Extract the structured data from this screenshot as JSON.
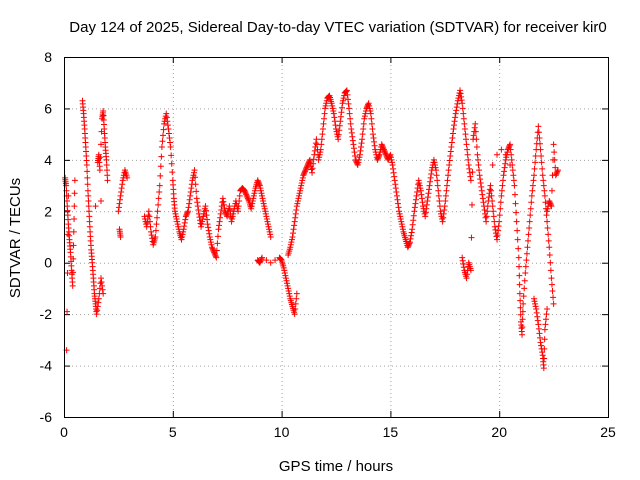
{
  "chart_data": {
    "type": "scatter",
    "title": "Day 124 of 2025, Sidereal Day-to-day VTEC variation (SDTVAR) for receiver kir0",
    "xlabel": "GPS time / hours",
    "ylabel": "SDTVAR / TECUs",
    "xlim": [
      0,
      25
    ],
    "ylim": [
      -6,
      8
    ],
    "xticks": [
      0,
      5,
      10,
      15,
      20,
      25
    ],
    "yticks": [
      -6,
      -4,
      -2,
      0,
      2,
      4,
      6,
      8
    ],
    "grid": true,
    "marker": "+",
    "color": "#ff0000",
    "series": [
      {
        "name": "SDTVAR",
        "points": [
          [
            0.05,
            3.3
          ],
          [
            0.1,
            3.0
          ],
          [
            0.15,
            2.2
          ],
          [
            0.2,
            1.5
          ],
          [
            0.25,
            0.9
          ],
          [
            0.3,
            0.4
          ],
          [
            0.35,
            -0.3
          ],
          [
            0.4,
            -0.9
          ],
          [
            0.45,
            1.2
          ],
          [
            0.5,
            3.2
          ],
          [
            0.12,
            -3.4
          ],
          [
            0.2,
            2.6
          ],
          [
            0.85,
            6.3
          ],
          [
            0.9,
            5.8
          ],
          [
            0.95,
            5.2
          ],
          [
            1.0,
            4.5
          ],
          [
            1.05,
            3.8
          ],
          [
            1.1,
            2.8
          ],
          [
            1.15,
            2.0
          ],
          [
            1.2,
            1.2
          ],
          [
            1.25,
            0.5
          ],
          [
            1.3,
            0.0
          ],
          [
            1.35,
            -0.6
          ],
          [
            1.4,
            -1.2
          ],
          [
            1.45,
            -1.6
          ],
          [
            1.5,
            -2.0
          ],
          [
            1.6,
            -1.4
          ],
          [
            1.7,
            -0.6
          ],
          [
            1.8,
            -1.2
          ],
          [
            1.55,
            3.9
          ],
          [
            1.6,
            4.2
          ],
          [
            1.65,
            3.6
          ],
          [
            1.75,
            5.6
          ],
          [
            1.8,
            5.9
          ],
          [
            1.85,
            5.2
          ],
          [
            1.9,
            4.5
          ],
          [
            1.95,
            4.0
          ],
          [
            2.0,
            3.2
          ],
          [
            1.7,
            2.4
          ],
          [
            1.45,
            2.2
          ],
          [
            2.5,
            2.0
          ],
          [
            2.6,
            2.6
          ],
          [
            2.7,
            3.2
          ],
          [
            2.8,
            3.6
          ],
          [
            2.9,
            3.3
          ],
          [
            2.55,
            1.3
          ],
          [
            2.6,
            1.0
          ],
          [
            3.7,
            1.8
          ],
          [
            3.8,
            1.4
          ],
          [
            3.9,
            2.0
          ],
          [
            4.0,
            1.2
          ],
          [
            4.1,
            0.7
          ],
          [
            4.2,
            1.0
          ],
          [
            4.3,
            2.0
          ],
          [
            4.4,
            3.0
          ],
          [
            4.5,
            4.5
          ],
          [
            4.6,
            5.4
          ],
          [
            4.7,
            5.8
          ],
          [
            4.8,
            5.2
          ],
          [
            4.9,
            4.5
          ],
          [
            5.0,
            3.2
          ],
          [
            5.05,
            2.5
          ],
          [
            5.1,
            2.0
          ],
          [
            5.2,
            1.6
          ],
          [
            5.3,
            1.2
          ],
          [
            5.4,
            0.9
          ],
          [
            5.5,
            1.3
          ],
          [
            5.6,
            1.8
          ],
          [
            5.7,
            2.0
          ],
          [
            5.8,
            2.6
          ],
          [
            5.9,
            3.2
          ],
          [
            6.0,
            3.6
          ],
          [
            6.1,
            2.5
          ],
          [
            6.2,
            1.9
          ],
          [
            6.3,
            1.4
          ],
          [
            6.4,
            1.8
          ],
          [
            6.5,
            2.2
          ],
          [
            6.6,
            1.5
          ],
          [
            6.7,
            1.0
          ],
          [
            6.8,
            0.6
          ],
          [
            6.9,
            0.4
          ],
          [
            7.0,
            0.2
          ],
          [
            7.1,
            1.3
          ],
          [
            7.2,
            1.9
          ],
          [
            7.3,
            2.5
          ],
          [
            7.4,
            2.0
          ],
          [
            7.5,
            1.8
          ],
          [
            7.6,
            2.2
          ],
          [
            7.7,
            1.6
          ],
          [
            7.8,
            2.0
          ],
          [
            7.9,
            2.4
          ],
          [
            8.0,
            2.0
          ],
          [
            8.1,
            2.8
          ],
          [
            8.2,
            2.9
          ],
          [
            8.3,
            2.8
          ],
          [
            8.4,
            2.6
          ],
          [
            8.5,
            2.4
          ],
          [
            8.6,
            2.1
          ],
          [
            8.7,
            2.5
          ],
          [
            8.8,
            2.9
          ],
          [
            8.9,
            3.2
          ],
          [
            9.0,
            3.0
          ],
          [
            9.1,
            2.6
          ],
          [
            9.2,
            2.2
          ],
          [
            9.3,
            1.8
          ],
          [
            9.4,
            1.4
          ],
          [
            9.5,
            1.0
          ],
          [
            8.9,
            0.1
          ],
          [
            9.0,
            0.0
          ],
          [
            9.1,
            0.2
          ],
          [
            9.3,
            0.1
          ],
          [
            9.5,
            0.0
          ],
          [
            9.7,
            0.1
          ],
          [
            9.9,
            0.2
          ],
          [
            10.0,
            0.1
          ],
          [
            10.1,
            -0.2
          ],
          [
            10.2,
            -0.6
          ],
          [
            10.3,
            -1.0
          ],
          [
            10.4,
            -1.4
          ],
          [
            10.5,
            -1.7
          ],
          [
            10.6,
            -2.0
          ],
          [
            10.7,
            -1.2
          ],
          [
            10.3,
            0.3
          ],
          [
            10.4,
            0.6
          ],
          [
            10.5,
            1.0
          ],
          [
            10.6,
            1.6
          ],
          [
            10.7,
            2.2
          ],
          [
            10.8,
            2.6
          ],
          [
            10.9,
            3.0
          ],
          [
            11.0,
            3.4
          ],
          [
            11.1,
            3.6
          ],
          [
            11.2,
            3.8
          ],
          [
            11.3,
            4.0
          ],
          [
            11.4,
            3.5
          ],
          [
            11.5,
            4.2
          ],
          [
            11.6,
            4.8
          ],
          [
            11.7,
            4.0
          ],
          [
            11.8,
            4.4
          ],
          [
            11.9,
            5.2
          ],
          [
            12.0,
            6.0
          ],
          [
            12.1,
            6.4
          ],
          [
            12.2,
            6.5
          ],
          [
            12.3,
            6.2
          ],
          [
            12.4,
            5.8
          ],
          [
            12.5,
            5.2
          ],
          [
            12.6,
            4.8
          ],
          [
            12.7,
            5.5
          ],
          [
            12.8,
            6.2
          ],
          [
            12.9,
            6.6
          ],
          [
            13.0,
            6.7
          ],
          [
            13.1,
            6.0
          ],
          [
            13.2,
            5.2
          ],
          [
            13.3,
            4.6
          ],
          [
            13.4,
            4.0
          ],
          [
            13.5,
            3.8
          ],
          [
            13.6,
            4.2
          ],
          [
            13.7,
            4.8
          ],
          [
            13.8,
            5.6
          ],
          [
            13.9,
            6.0
          ],
          [
            14.0,
            6.2
          ],
          [
            14.1,
            5.8
          ],
          [
            14.2,
            5.0
          ],
          [
            14.3,
            4.4
          ],
          [
            14.4,
            4.0
          ],
          [
            14.5,
            4.2
          ],
          [
            14.6,
            4.6
          ],
          [
            14.7,
            4.4
          ],
          [
            14.8,
            4.2
          ],
          [
            14.9,
            4.0
          ],
          [
            15.0,
            4.2
          ],
          [
            15.1,
            3.8
          ],
          [
            15.2,
            3.2
          ],
          [
            15.3,
            2.6
          ],
          [
            15.4,
            2.0
          ],
          [
            15.5,
            1.6
          ],
          [
            15.6,
            1.2
          ],
          [
            15.7,
            0.9
          ],
          [
            15.8,
            0.6
          ],
          [
            15.9,
            0.8
          ],
          [
            16.0,
            1.3
          ],
          [
            16.1,
            2.0
          ],
          [
            16.2,
            2.6
          ],
          [
            16.3,
            3.2
          ],
          [
            16.4,
            2.8
          ],
          [
            16.5,
            2.2
          ],
          [
            16.6,
            1.8
          ],
          [
            16.7,
            2.4
          ],
          [
            16.8,
            3.0
          ],
          [
            16.9,
            3.6
          ],
          [
            17.0,
            4.0
          ],
          [
            17.1,
            3.6
          ],
          [
            17.2,
            2.8
          ],
          [
            17.3,
            2.0
          ],
          [
            17.4,
            1.6
          ],
          [
            17.5,
            2.2
          ],
          [
            17.6,
            3.0
          ],
          [
            17.7,
            3.8
          ],
          [
            17.8,
            4.5
          ],
          [
            17.9,
            5.2
          ],
          [
            18.0,
            5.8
          ],
          [
            18.1,
            6.3
          ],
          [
            18.2,
            6.7
          ],
          [
            18.3,
            6.2
          ],
          [
            18.4,
            5.4
          ],
          [
            18.5,
            4.6
          ],
          [
            18.6,
            3.8
          ],
          [
            18.7,
            3.2
          ],
          [
            18.3,
            0.2
          ],
          [
            18.4,
            -0.3
          ],
          [
            18.5,
            -0.6
          ],
          [
            18.6,
            0.0
          ],
          [
            18.7,
            -0.3
          ],
          [
            18.8,
            4.8
          ],
          [
            18.9,
            5.4
          ],
          [
            19.0,
            4.2
          ],
          [
            19.1,
            3.4
          ],
          [
            19.2,
            2.8
          ],
          [
            19.3,
            2.2
          ],
          [
            19.4,
            1.6
          ],
          [
            19.5,
            2.4
          ],
          [
            19.6,
            3.0
          ],
          [
            19.7,
            2.2
          ],
          [
            19.8,
            1.4
          ],
          [
            19.9,
            0.9
          ],
          [
            20.0,
            1.6
          ],
          [
            20.1,
            2.6
          ],
          [
            20.2,
            3.4
          ],
          [
            20.3,
            4.0
          ],
          [
            20.4,
            4.4
          ],
          [
            20.5,
            4.6
          ],
          [
            20.6,
            3.8
          ],
          [
            20.7,
            3.0
          ],
          [
            20.8,
            1.6
          ],
          [
            20.9,
            0.2
          ],
          [
            20.95,
            -1.2
          ],
          [
            21.0,
            -2.3
          ],
          [
            21.05,
            -2.8
          ],
          [
            21.1,
            -1.6
          ],
          [
            21.2,
            -0.4
          ],
          [
            21.3,
            0.6
          ],
          [
            21.4,
            1.6
          ],
          [
            21.5,
            2.6
          ],
          [
            21.6,
            3.4
          ],
          [
            21.7,
            4.4
          ],
          [
            21.8,
            5.3
          ],
          [
            21.9,
            4.4
          ],
          [
            22.0,
            3.4
          ],
          [
            22.1,
            2.6
          ],
          [
            22.2,
            1.6
          ],
          [
            22.3,
            0.6
          ],
          [
            22.4,
            -0.6
          ],
          [
            22.5,
            -1.6
          ],
          [
            21.6,
            -1.4
          ],
          [
            21.7,
            -1.8
          ],
          [
            21.8,
            -2.4
          ],
          [
            21.9,
            -3.1
          ],
          [
            22.0,
            -3.6
          ],
          [
            22.05,
            -4.1
          ],
          [
            22.1,
            -2.6
          ],
          [
            22.2,
            -1.8
          ],
          [
            22.2,
            2.0
          ],
          [
            22.3,
            2.4
          ],
          [
            22.4,
            2.2
          ],
          [
            22.5,
            4.6
          ],
          [
            22.6,
            3.4
          ],
          [
            22.7,
            3.6
          ],
          [
            20.5,
            3.8
          ],
          [
            20.3,
            4.2
          ],
          [
            20.1,
            4.4
          ],
          [
            19.9,
            4.2
          ],
          [
            19.7,
            3.8
          ]
        ]
      }
    ]
  }
}
